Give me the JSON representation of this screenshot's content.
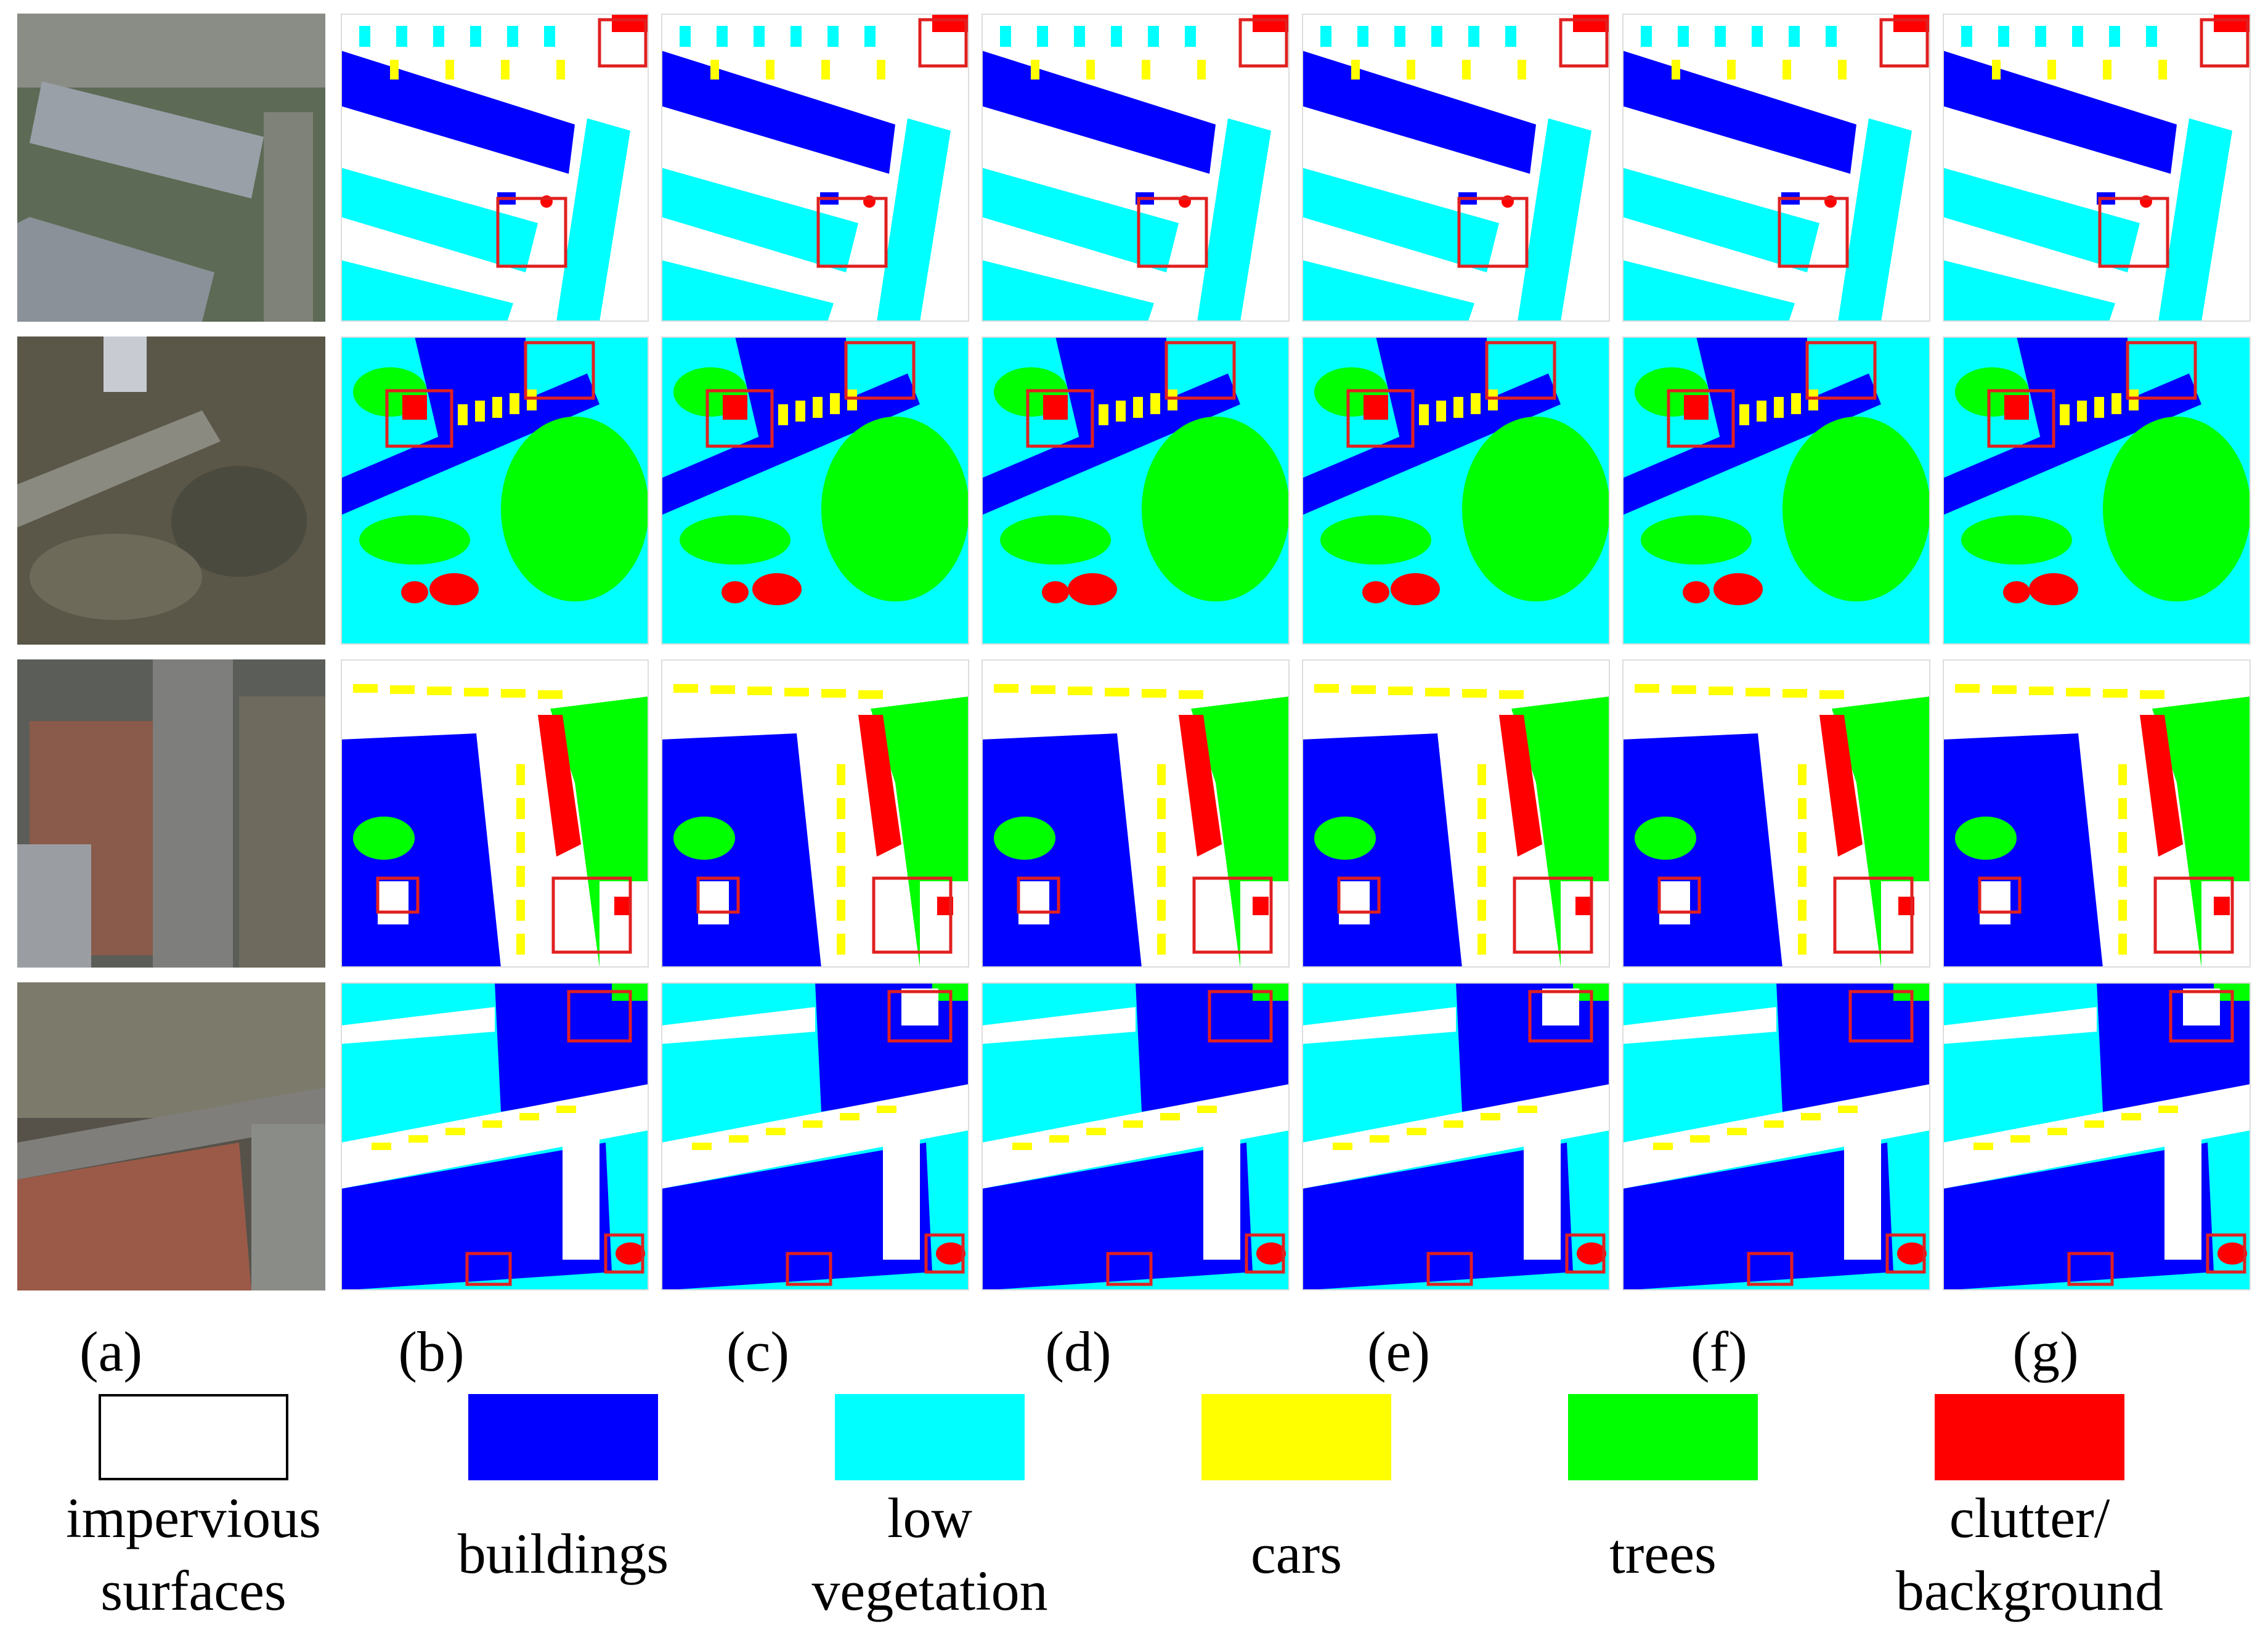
{
  "columns": [
    {
      "id": "a",
      "label": "(a)",
      "kind": "aerial"
    },
    {
      "id": "b",
      "label": "(b)",
      "kind": "segmentation"
    },
    {
      "id": "c",
      "label": "(c)",
      "kind": "segmentation"
    },
    {
      "id": "d",
      "label": "(d)",
      "kind": "segmentation"
    },
    {
      "id": "e",
      "label": "(e)",
      "kind": "segmentation"
    },
    {
      "id": "f",
      "label": "(f)",
      "kind": "segmentation"
    },
    {
      "id": "g",
      "label": "(g)",
      "kind": "segmentation"
    }
  ],
  "rows": 4,
  "legend": [
    {
      "name": "impervious-surfaces",
      "label": "impervious\nsurfaces",
      "color": "#ffffff"
    },
    {
      "name": "buildings",
      "label": "buildings",
      "color": "#0000ff"
    },
    {
      "name": "low-vegetation",
      "label": "low\nvegetation",
      "color": "#00ffff"
    },
    {
      "name": "cars",
      "label": "cars",
      "color": "#ffff00"
    },
    {
      "name": "trees",
      "label": "trees",
      "color": "#00ff00"
    },
    {
      "name": "clutter-background",
      "label": "clutter/\nbackground",
      "color": "#ff0000"
    }
  ],
  "colors": {
    "impervious": "#ffffff",
    "buildings": "#0000ff",
    "low_vegetation": "#00ffff",
    "cars": "#ffff00",
    "trees": "#00ff00",
    "clutter": "#ff0000",
    "highlight_box": "#e02020"
  }
}
